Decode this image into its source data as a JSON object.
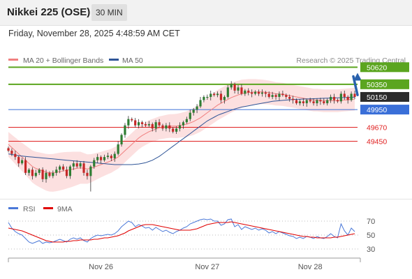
{
  "header": {
    "title": "Nikkei 225 (OSE)",
    "interval": "30 MIN",
    "datetime": "Friday, November 28, 2025 4:48:59 AM CET"
  },
  "credit": "Research © 2025 Trading Central",
  "colors": {
    "green_level": "#5ba51f",
    "red_level": "#e02020",
    "blue_level": "#3a6fd8",
    "price_tag": "#2b2b2b",
    "ma20": "#f08080",
    "ma50": "#2f5597",
    "bollinger_fill": "#fbd5d5",
    "candle_up": "#2e7d32",
    "candle_down": "#c62828",
    "candle_wick": "#333333",
    "arrow": "#2a62ad",
    "rsi": "#4a78d8",
    "rsi_ma": "#e00000"
  },
  "chart_data": [
    {
      "type": "candlestick",
      "legend": [
        {
          "name": "MA 20 + Bollinger Bands",
          "color": "#f08080"
        },
        {
          "name": "MA 50",
          "color": "#2f5597"
        }
      ],
      "x_ticks": [
        "Nov 26",
        "Nov 27",
        "Nov 28"
      ],
      "ylim": [
        48650,
        50800
      ],
      "levels": [
        {
          "label": "50620",
          "value": 50620,
          "kind": "resistance",
          "color": "#5ba51f",
          "tag_style": "filled"
        },
        {
          "label": "50350",
          "value": 50350,
          "kind": "resistance",
          "color": "#5ba51f",
          "tag_style": "filled"
        },
        {
          "label": "50150",
          "value": 50150,
          "kind": "last-price",
          "color": "#2b2b2b",
          "tag_style": "filled"
        },
        {
          "label": "49950",
          "value": 49950,
          "kind": "pivot",
          "color": "#3a6fd8",
          "tag_style": "filled"
        },
        {
          "label": "49670",
          "value": 49670,
          "kind": "support",
          "color": "#e02020",
          "tag_style": "text"
        },
        {
          "label": "49450",
          "value": 49450,
          "kind": "support",
          "color": "#e02020",
          "tag_style": "text"
        }
      ],
      "close": [
        49300,
        49250,
        49200,
        49100,
        49150,
        48950,
        49000,
        48900,
        48950,
        49000,
        48850,
        48950,
        48900,
        48950,
        49000,
        49050,
        49000,
        48900,
        49050,
        49100,
        49050,
        49100,
        48950,
        48900,
        49050,
        49150,
        49200,
        49150,
        49200,
        49220,
        49180,
        49250,
        49400,
        49550,
        49700,
        49800,
        49780,
        49700,
        49750,
        49720,
        49700,
        49720,
        49650,
        49750,
        49700,
        49650,
        49700,
        49650,
        49600,
        49650,
        49700,
        49750,
        49800,
        49900,
        49950,
        50000,
        50100,
        50150,
        50150,
        50200,
        50180,
        50200,
        50100,
        50150,
        50300,
        50350,
        50250,
        50300,
        50200,
        50250,
        50220,
        50200,
        50230,
        50200,
        50220,
        50200,
        50150,
        50180,
        50150,
        50200,
        50180,
        50150,
        50120,
        50100,
        50050,
        50080,
        50050,
        50100,
        50080,
        50050,
        50100,
        50080,
        50050,
        50100,
        50150,
        50100,
        50080,
        50200,
        50150,
        50100,
        50200,
        50150
      ],
      "ma20": [
        49400,
        49350,
        49300,
        49250,
        49200,
        49150,
        49100,
        49050,
        49020,
        49000,
        48980,
        48960,
        48950,
        48950,
        48960,
        48970,
        48980,
        48990,
        49000,
        49010,
        49020,
        49030,
        49020,
        49010,
        49020,
        49040,
        49060,
        49080,
        49100,
        49120,
        49140,
        49170,
        49200,
        49250,
        49300,
        49350,
        49400,
        49450,
        49500,
        49540,
        49570,
        49600,
        49620,
        49640,
        49660,
        49670,
        49680,
        49690,
        49690,
        49690,
        49700,
        49710,
        49720,
        49740,
        49760,
        49790,
        49820,
        49860,
        49900,
        49940,
        49980,
        50020,
        50050,
        50080,
        50110,
        50140,
        50160,
        50180,
        50200,
        50210,
        50220,
        50225,
        50230,
        50230,
        50230,
        50225,
        50220,
        50210,
        50200,
        50195,
        50190,
        50180,
        50170,
        50160,
        50150,
        50140,
        50130,
        50120,
        50110,
        50100,
        50100,
        50095,
        50090,
        50090,
        50090,
        50090,
        50090,
        50095,
        50100,
        50105,
        50110,
        50115
      ],
      "ma50": [
        49250,
        49240,
        49230,
        49220,
        49215,
        49210,
        49205,
        49200,
        49195,
        49190,
        49185,
        49180,
        49175,
        49170,
        49165,
        49160,
        49155,
        49150,
        49145,
        49140,
        49135,
        49130,
        49125,
        49120,
        49115,
        49110,
        49105,
        49100,
        49095,
        49090,
        49085,
        49080,
        49080,
        49080,
        49080,
        49080,
        49080,
        49085,
        49090,
        49100,
        49110,
        49130,
        49150,
        49180,
        49210,
        49250,
        49290,
        49330,
        49370,
        49410,
        49450,
        49490,
        49530,
        49570,
        49610,
        49650,
        49690,
        49730,
        49770,
        49800,
        49830,
        49860,
        49880,
        49900,
        49920,
        49940,
        49960,
        49975,
        49990,
        50000,
        50010,
        50020,
        50030,
        50040,
        50050,
        50060,
        50070,
        50080,
        50085,
        50090,
        50095,
        50100,
        50105,
        50110,
        50112,
        50114,
        50116,
        50118,
        50120,
        50122,
        50124,
        50126,
        50128,
        50130,
        50132,
        50134,
        50136,
        50138,
        50140,
        50142,
        50144,
        50146
      ]
    },
    {
      "type": "line",
      "legend": [
        {
          "name": "RSI",
          "color": "#4a78d8"
        },
        {
          "name": "9MA",
          "color": "#e00000"
        }
      ],
      "y_ticks": [
        70,
        50,
        30
      ],
      "ylim": [
        20,
        80
      ],
      "rsi": [
        68,
        60,
        55,
        52,
        50,
        45,
        40,
        38,
        40,
        42,
        38,
        40,
        39,
        40,
        42,
        44,
        42,
        40,
        44,
        46,
        44,
        46,
        42,
        40,
        45,
        48,
        50,
        49,
        50,
        51,
        50,
        52,
        56,
        62,
        66,
        70,
        68,
        62,
        65,
        63,
        60,
        61,
        57,
        61,
        58,
        55,
        57,
        54,
        52,
        55,
        57,
        60,
        62,
        66,
        68,
        70,
        72,
        73,
        72,
        73,
        70,
        70,
        64,
        66,
        72,
        73,
        62,
        65,
        58,
        62,
        60,
        58,
        60,
        57,
        59,
        57,
        53,
        55,
        52,
        55,
        53,
        51,
        49,
        48,
        45,
        47,
        45,
        48,
        47,
        45,
        48,
        46,
        45,
        48,
        52,
        48,
        46,
        66,
        56,
        50,
        60,
        55
      ],
      "ma9": [
        60,
        59,
        58,
        57,
        56,
        54,
        52,
        50,
        48,
        46,
        44,
        42,
        41,
        40,
        40,
        40,
        40,
        41,
        41,
        42,
        42,
        43,
        43,
        43,
        43,
        44,
        44,
        45,
        46,
        46,
        47,
        48,
        49,
        51,
        53,
        56,
        58,
        60,
        62,
        64,
        65,
        65,
        65,
        64,
        63,
        62,
        61,
        60,
        59,
        58,
        57,
        57,
        57,
        57,
        58,
        59,
        61,
        63,
        65,
        66,
        67,
        68,
        68,
        68,
        68,
        69,
        68,
        67,
        66,
        65,
        64,
        63,
        62,
        61,
        60,
        59,
        58,
        57,
        56,
        55,
        54,
        53,
        52,
        51,
        50,
        49,
        48,
        48,
        47,
        47,
        46,
        46,
        46,
        46,
        46,
        47,
        47,
        48,
        49,
        50,
        51,
        52
      ]
    }
  ]
}
